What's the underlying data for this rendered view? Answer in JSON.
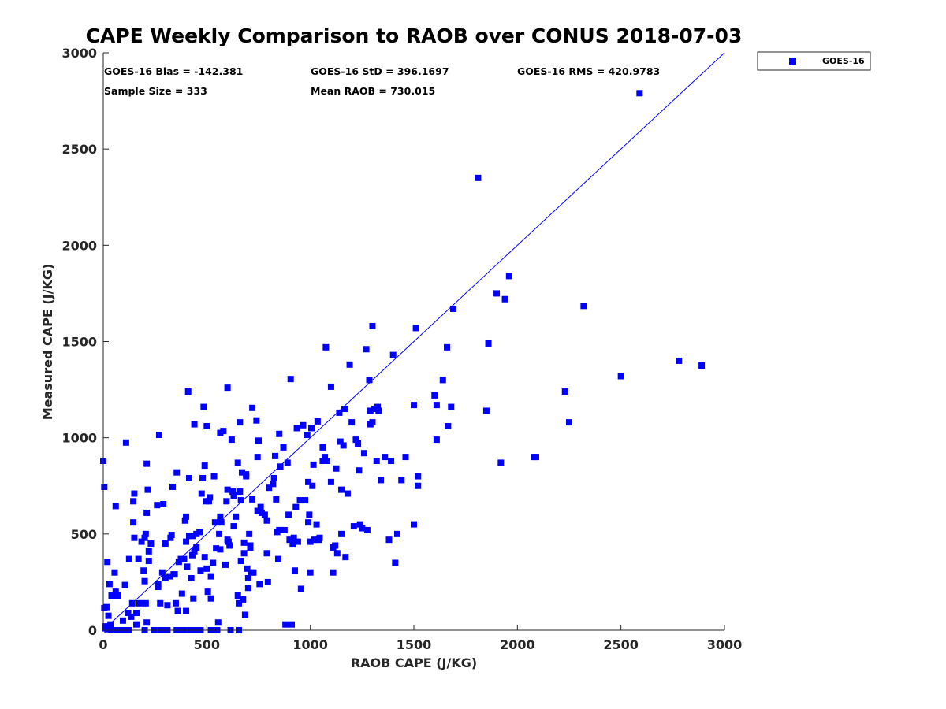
{
  "chart_data": {
    "type": "scatter",
    "title": "CAPE Weekly Comparison to RAOB over CONUS 2018-07-03",
    "xlabel": "RAOB CAPE (J/KG)",
    "ylabel": "Measured CAPE (J/KG)",
    "xlim": [
      0,
      3000
    ],
    "ylim": [
      0,
      3000
    ],
    "xticks": [
      "0",
      "500",
      "1000",
      "1500",
      "2000",
      "2500",
      "3000"
    ],
    "yticks": [
      "0",
      "500",
      "1000",
      "1500",
      "2000",
      "2500",
      "3000"
    ],
    "grid": false,
    "legend_position": "outside-top-right",
    "colors": {
      "series": "#0000ff",
      "reference_line": "#0000ff",
      "axes": "#262626"
    },
    "stats": {
      "bias": "GOES-16 Bias = -142.381",
      "std": "GOES-16 StD = 396.1697",
      "rms": "GOES-16 RMS = 420.9783",
      "sample": "Sample Size = 333",
      "mean": "Mean RAOB = 730.015"
    },
    "reference_line": {
      "from": [
        0,
        0
      ],
      "to": [
        3000,
        3000
      ]
    },
    "series": [
      {
        "name": "GOES-16",
        "marker": "square",
        "points": [
          [
            0,
            880
          ],
          [
            5,
            745
          ],
          [
            20,
            355
          ],
          [
            30,
            240
          ],
          [
            5,
            115
          ],
          [
            15,
            120
          ],
          [
            25,
            75
          ],
          [
            35,
            30
          ],
          [
            10,
            10
          ],
          [
            20,
            5
          ],
          [
            40,
            0
          ],
          [
            55,
            0
          ],
          [
            70,
            0
          ],
          [
            85,
            0
          ],
          [
            100,
            0
          ],
          [
            115,
            0
          ],
          [
            10,
            20
          ],
          [
            30,
            15
          ],
          [
            40,
            180
          ],
          [
            55,
            300
          ],
          [
            60,
            645
          ],
          [
            60,
            200
          ],
          [
            70,
            180
          ],
          [
            80,
            0
          ],
          [
            95,
            50
          ],
          [
            110,
            975
          ],
          [
            105,
            235
          ],
          [
            120,
            90
          ],
          [
            125,
            0
          ],
          [
            125,
            370
          ],
          [
            135,
            70
          ],
          [
            140,
            140
          ],
          [
            145,
            670
          ],
          [
            150,
            710
          ],
          [
            145,
            560
          ],
          [
            150,
            480
          ],
          [
            160,
            30
          ],
          [
            160,
            90
          ],
          [
            170,
            370
          ],
          [
            175,
            140
          ],
          [
            185,
            460
          ],
          [
            195,
            310
          ],
          [
            200,
            480
          ],
          [
            205,
            500
          ],
          [
            200,
            255
          ],
          [
            205,
            140
          ],
          [
            210,
            610
          ],
          [
            210,
            865
          ],
          [
            210,
            40
          ],
          [
            215,
            730
          ],
          [
            220,
            410
          ],
          [
            220,
            360
          ],
          [
            200,
            0
          ],
          [
            230,
            450
          ],
          [
            245,
            0
          ],
          [
            260,
            650
          ],
          [
            265,
            225
          ],
          [
            265,
            240
          ],
          [
            270,
            1015
          ],
          [
            275,
            140
          ],
          [
            275,
            0
          ],
          [
            285,
            300
          ],
          [
            290,
            655
          ],
          [
            290,
            0
          ],
          [
            300,
            450
          ],
          [
            300,
            270
          ],
          [
            310,
            0
          ],
          [
            310,
            130
          ],
          [
            320,
            280
          ],
          [
            325,
            480
          ],
          [
            330,
            495
          ],
          [
            335,
            745
          ],
          [
            340,
            290
          ],
          [
            345,
            290
          ],
          [
            355,
            820
          ],
          [
            355,
            0
          ],
          [
            350,
            140
          ],
          [
            360,
            100
          ],
          [
            365,
            355
          ],
          [
            375,
            370
          ],
          [
            380,
            190
          ],
          [
            375,
            0
          ],
          [
            390,
            0
          ],
          [
            390,
            370
          ],
          [
            395,
            570
          ],
          [
            400,
            590
          ],
          [
            400,
            460
          ],
          [
            400,
            100
          ],
          [
            405,
            330
          ],
          [
            410,
            1240
          ],
          [
            415,
            490
          ],
          [
            415,
            790
          ],
          [
            420,
            0
          ],
          [
            425,
            270
          ],
          [
            430,
            390
          ],
          [
            430,
            490
          ],
          [
            435,
            165
          ],
          [
            440,
            1070
          ],
          [
            440,
            410
          ],
          [
            450,
            500
          ],
          [
            450,
            430
          ],
          [
            445,
            0
          ],
          [
            460,
            0
          ],
          [
            465,
            510
          ],
          [
            470,
            310
          ],
          [
            470,
            0
          ],
          [
            475,
            710
          ],
          [
            480,
            790
          ],
          [
            485,
            1160
          ],
          [
            490,
            380
          ],
          [
            490,
            855
          ],
          [
            495,
            670
          ],
          [
            500,
            1060
          ],
          [
            500,
            320
          ],
          [
            505,
            200
          ],
          [
            510,
            670
          ],
          [
            515,
            690
          ],
          [
            520,
            0
          ],
          [
            520,
            165
          ],
          [
            520,
            280
          ],
          [
            530,
            350
          ],
          [
            535,
            800
          ],
          [
            540,
            560
          ],
          [
            545,
            425
          ],
          [
            550,
            0
          ],
          [
            555,
            40
          ],
          [
            560,
            500
          ],
          [
            565,
            1025
          ],
          [
            565,
            590
          ],
          [
            565,
            420
          ],
          [
            565,
            570
          ],
          [
            570,
            560
          ],
          [
            580,
            1035
          ],
          [
            590,
            340
          ],
          [
            595,
            670
          ],
          [
            600,
            1260
          ],
          [
            600,
            730
          ],
          [
            600,
            470
          ],
          [
            605,
            460
          ],
          [
            610,
            440
          ],
          [
            615,
            0
          ],
          [
            620,
            990
          ],
          [
            625,
            720
          ],
          [
            630,
            700
          ],
          [
            630,
            540
          ],
          [
            640,
            590
          ],
          [
            650,
            870
          ],
          [
            650,
            180
          ],
          [
            655,
            140
          ],
          [
            655,
            0
          ],
          [
            660,
            1080
          ],
          [
            660,
            720
          ],
          [
            665,
            675
          ],
          [
            665,
            360
          ],
          [
            670,
            820
          ],
          [
            675,
            160
          ],
          [
            680,
            455
          ],
          [
            680,
            400
          ],
          [
            685,
            80
          ],
          [
            690,
            800
          ],
          [
            690,
            810
          ],
          [
            695,
            320
          ],
          [
            700,
            270
          ],
          [
            700,
            220
          ],
          [
            705,
            500
          ],
          [
            710,
            430
          ],
          [
            710,
            440
          ],
          [
            715,
            300
          ],
          [
            720,
            1155
          ],
          [
            720,
            680
          ],
          [
            725,
            300
          ],
          [
            740,
            1090
          ],
          [
            745,
            620
          ],
          [
            745,
            900
          ],
          [
            750,
            985
          ],
          [
            755,
            240
          ],
          [
            760,
            640
          ],
          [
            765,
            610
          ],
          [
            780,
            600
          ],
          [
            790,
            570
          ],
          [
            790,
            400
          ],
          [
            795,
            250
          ],
          [
            800,
            740
          ],
          [
            820,
            760
          ],
          [
            825,
            790
          ],
          [
            830,
            905
          ],
          [
            835,
            680
          ],
          [
            840,
            510
          ],
          [
            845,
            370
          ],
          [
            850,
            1020
          ],
          [
            850,
            520
          ],
          [
            855,
            850
          ],
          [
            860,
            520
          ],
          [
            870,
            950
          ],
          [
            875,
            520
          ],
          [
            880,
            30
          ],
          [
            890,
            870
          ],
          [
            895,
            600
          ],
          [
            900,
            470
          ],
          [
            905,
            1305
          ],
          [
            910,
            30
          ],
          [
            915,
            450
          ],
          [
            920,
            480
          ],
          [
            925,
            310
          ],
          [
            930,
            640
          ],
          [
            935,
            1050
          ],
          [
            940,
            460
          ],
          [
            950,
            675
          ],
          [
            955,
            215
          ],
          [
            965,
            1065
          ],
          [
            975,
            675
          ],
          [
            985,
            1015
          ],
          [
            990,
            770
          ],
          [
            990,
            560
          ],
          [
            995,
            600
          ],
          [
            1000,
            300
          ],
          [
            1000,
            460
          ],
          [
            1005,
            1050
          ],
          [
            1010,
            750
          ],
          [
            1015,
            860
          ],
          [
            1020,
            470
          ],
          [
            1030,
            550
          ],
          [
            1035,
            1085
          ],
          [
            1040,
            470
          ],
          [
            1045,
            480
          ],
          [
            1060,
            880
          ],
          [
            1060,
            950
          ],
          [
            1070,
            900
          ],
          [
            1075,
            1470
          ],
          [
            1080,
            880
          ],
          [
            1100,
            770
          ],
          [
            1100,
            1265
          ],
          [
            1110,
            430
          ],
          [
            1110,
            300
          ],
          [
            1120,
            440
          ],
          [
            1125,
            840
          ],
          [
            1130,
            400
          ],
          [
            1140,
            1130
          ],
          [
            1145,
            980
          ],
          [
            1150,
            500
          ],
          [
            1150,
            730
          ],
          [
            1160,
            960
          ],
          [
            1165,
            1150
          ],
          [
            1170,
            380
          ],
          [
            1180,
            710
          ],
          [
            1190,
            1380
          ],
          [
            1200,
            1080
          ],
          [
            1210,
            540
          ],
          [
            1220,
            990
          ],
          [
            1230,
            970
          ],
          [
            1235,
            830
          ],
          [
            1240,
            550
          ],
          [
            1250,
            530
          ],
          [
            1260,
            920
          ],
          [
            1270,
            1460
          ],
          [
            1275,
            520
          ],
          [
            1285,
            1300
          ],
          [
            1290,
            1140
          ],
          [
            1290,
            1070
          ],
          [
            1300,
            1580
          ],
          [
            1300,
            1080
          ],
          [
            1310,
            1150
          ],
          [
            1320,
            880
          ],
          [
            1325,
            1160
          ],
          [
            1330,
            1140
          ],
          [
            1340,
            780
          ],
          [
            1360,
            900
          ],
          [
            1380,
            470
          ],
          [
            1390,
            880
          ],
          [
            1400,
            1430
          ],
          [
            1410,
            350
          ],
          [
            1420,
            500
          ],
          [
            1440,
            780
          ],
          [
            1460,
            900
          ],
          [
            1500,
            1170
          ],
          [
            1510,
            1570
          ],
          [
            1520,
            800
          ],
          [
            1520,
            750
          ],
          [
            1500,
            550
          ],
          [
            1600,
            1220
          ],
          [
            1610,
            990
          ],
          [
            1610,
            1170
          ],
          [
            1640,
            1300
          ],
          [
            1660,
            1470
          ],
          [
            1665,
            1060
          ],
          [
            1680,
            1160
          ],
          [
            1690,
            1670
          ],
          [
            1810,
            2350
          ],
          [
            1850,
            1140
          ],
          [
            1860,
            1490
          ],
          [
            1900,
            1750
          ],
          [
            1920,
            870
          ],
          [
            1940,
            1720
          ],
          [
            1960,
            1840
          ],
          [
            2080,
            900
          ],
          [
            2090,
            900
          ],
          [
            2230,
            1240
          ],
          [
            2250,
            1080
          ],
          [
            2320,
            1685
          ],
          [
            2500,
            1320
          ],
          [
            2590,
            2790
          ],
          [
            2780,
            1400
          ],
          [
            2890,
            1375
          ]
        ]
      }
    ]
  }
}
